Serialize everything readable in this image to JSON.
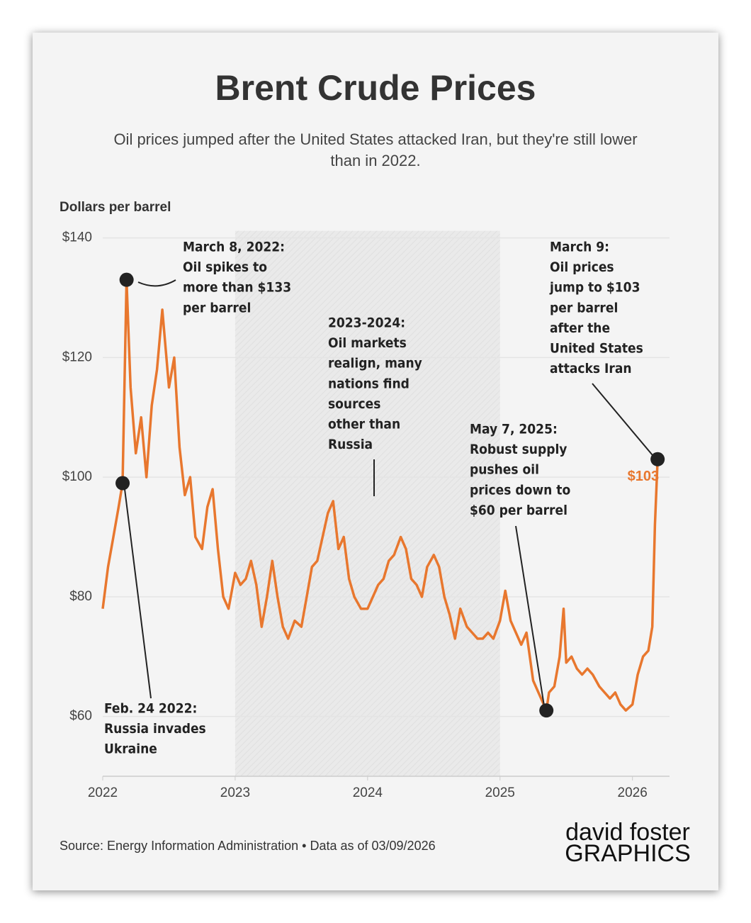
{
  "chart_data": {
    "type": "line",
    "title": "Brent Crude Prices",
    "subtitle": [
      "Oil prices jumped after the United States attacked Iran, but they're still lower",
      "than in 2022."
    ],
    "y_label": "Dollars per barrel",
    "source": "Source: Energy Information Administration • Data as of 03/09/2026",
    "logo": [
      "david foster",
      "GRAPHICS"
    ],
    "color": "#e8772e",
    "xlim": [
      2022,
      2026.28
    ],
    "xticks": [
      2022,
      2023,
      2024,
      2025,
      2026
    ],
    "ylim": [
      50,
      140
    ],
    "yticks": [
      {
        "value": 60,
        "label": "$60"
      },
      {
        "value": 80,
        "label": "$80"
      },
      {
        "value": 100,
        "label": "$100"
      },
      {
        "value": 120,
        "label": "$120"
      },
      {
        "value": 140,
        "label": "$140"
      }
    ],
    "grid": true,
    "shade": [
      2023,
      2025
    ],
    "x": [
      2022.0,
      2022.04,
      2022.08,
      2022.12,
      2022.15,
      2022.18,
      2022.21,
      2022.25,
      2022.29,
      2022.33,
      2022.37,
      2022.41,
      2022.45,
      2022.5,
      2022.54,
      2022.58,
      2022.62,
      2022.66,
      2022.7,
      2022.75,
      2022.79,
      2022.83,
      2022.87,
      2022.91,
      2022.95,
      2023.0,
      2023.04,
      2023.08,
      2023.12,
      2023.16,
      2023.2,
      2023.24,
      2023.28,
      2023.32,
      2023.36,
      2023.4,
      2023.45,
      2023.5,
      2023.54,
      2023.58,
      2023.62,
      2023.66,
      2023.7,
      2023.74,
      2023.78,
      2023.82,
      2023.86,
      2023.9,
      2023.95,
      2024.0,
      2024.04,
      2024.08,
      2024.12,
      2024.16,
      2024.2,
      2024.25,
      2024.29,
      2024.33,
      2024.37,
      2024.41,
      2024.45,
      2024.5,
      2024.54,
      2024.58,
      2024.62,
      2024.66,
      2024.7,
      2024.75,
      2024.79,
      2024.83,
      2024.87,
      2024.91,
      2024.95,
      2025.0,
      2025.04,
      2025.08,
      2025.12,
      2025.16,
      2025.2,
      2025.25,
      2025.29,
      2025.33,
      2025.35,
      2025.37,
      2025.41,
      2025.45,
      2025.48,
      2025.5,
      2025.54,
      2025.58,
      2025.62,
      2025.66,
      2025.7,
      2025.75,
      2025.79,
      2025.83,
      2025.87,
      2025.91,
      2025.95,
      2026.0,
      2026.04,
      2026.08,
      2026.12,
      2026.15,
      2026.17,
      2026.19
    ],
    "values": [
      78,
      85,
      90,
      95,
      99,
      133,
      115,
      104,
      110,
      100,
      112,
      118,
      128,
      115,
      120,
      105,
      97,
      100,
      90,
      88,
      95,
      98,
      88,
      80,
      78,
      84,
      82,
      83,
      86,
      82,
      75,
      80,
      86,
      80,
      75,
      73,
      76,
      75,
      80,
      85,
      86,
      90,
      94,
      96,
      88,
      90,
      83,
      80,
      78,
      78,
      80,
      82,
      83,
      86,
      87,
      90,
      88,
      83,
      82,
      80,
      85,
      87,
      85,
      80,
      77,
      73,
      78,
      75,
      74,
      73,
      73,
      74,
      73,
      76,
      81,
      76,
      74,
      72,
      74,
      66,
      64,
      62,
      61,
      64,
      65,
      70,
      78,
      69,
      70,
      68,
      67,
      68,
      67,
      65,
      64,
      63,
      64,
      62,
      61,
      62,
      67,
      70,
      71,
      75,
      92,
      103
    ],
    "annotations": [
      {
        "x": 2022.15,
        "y": 99,
        "lines": [
          "Feb. 24 2022:",
          "Russia invades",
          "Ukraine"
        ]
      },
      {
        "x": 2022.18,
        "y": 133,
        "lines": [
          "March 8, 2022:",
          "Oil spikes to",
          "more than $133",
          "per barrel"
        ]
      },
      {
        "lines": [
          "2023-2024:",
          "Oil markets",
          "realign, many",
          "nations find",
          "sources",
          "other than",
          "Russia"
        ]
      },
      {
        "x": 2025.35,
        "y": 61,
        "lines": [
          "May 7, 2025:",
          "Robust supply",
          "pushes oil",
          "prices down to",
          "$60 per barrel"
        ]
      },
      {
        "x": 2026.19,
        "y": 103,
        "value_label": "$103",
        "lines": [
          "March 9:",
          "Oil prices",
          "jump to $103",
          "per barrel",
          "after the",
          "United States",
          "attacks Iran"
        ]
      }
    ]
  }
}
